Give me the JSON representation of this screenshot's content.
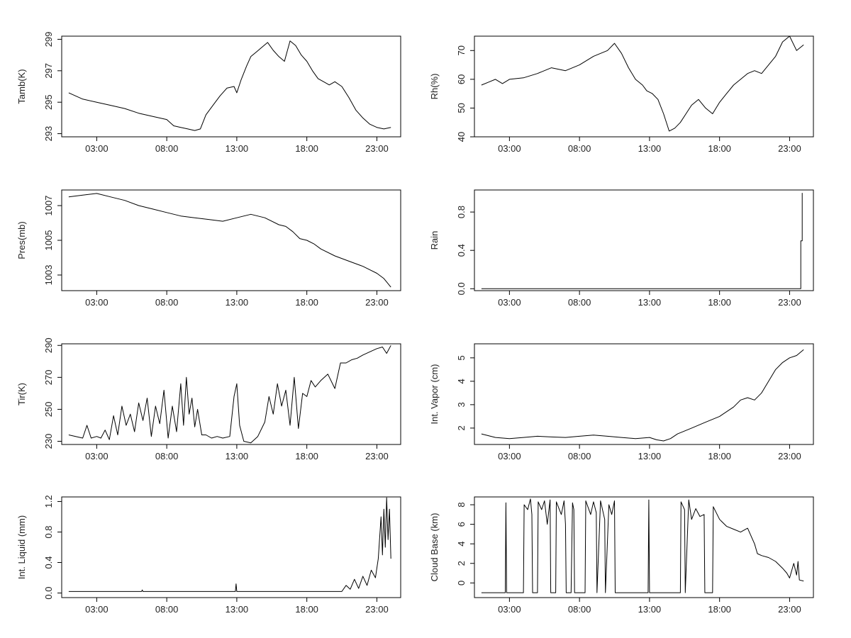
{
  "chart_data": [
    {
      "id": "tamb",
      "type": "line",
      "title": "",
      "xlabel": "",
      "ylabel": "Tamb(K)",
      "xlim": [
        0.5,
        24.7
      ],
      "ylim": [
        292.8,
        299.2
      ],
      "x_ticks": [
        3,
        8,
        13,
        18,
        23
      ],
      "x_tick_labels": [
        "03:00",
        "08:00",
        "13:00",
        "18:00",
        "23:00"
      ],
      "y_ticks": [
        293,
        295,
        297,
        299
      ],
      "y_tick_labels": [
        "293",
        "295",
        "297",
        "299"
      ],
      "grid": false,
      "legend": "none",
      "series": [
        {
          "x": [
            1.0,
            2.0,
            3.0,
            4.0,
            5.0,
            6.0,
            7.0,
            8.0,
            8.5,
            9.0,
            9.5,
            10.0,
            10.4,
            10.8,
            11.3,
            11.8,
            12.3,
            12.8,
            13.0,
            13.3,
            13.7,
            14.0,
            14.4,
            14.8,
            15.2,
            15.6,
            16.0,
            16.4,
            16.8,
            17.2,
            17.6,
            18.0,
            18.4,
            18.8,
            19.2,
            19.6,
            20.0,
            20.5,
            21.0,
            21.5,
            22.0,
            22.5,
            23.0,
            23.5,
            24.0
          ],
          "y": [
            295.6,
            295.2,
            295.0,
            294.8,
            294.6,
            294.3,
            294.1,
            293.9,
            293.5,
            293.4,
            293.3,
            293.2,
            293.3,
            294.2,
            294.8,
            295.4,
            295.9,
            296.0,
            295.6,
            296.4,
            297.3,
            297.9,
            298.2,
            298.5,
            298.8,
            298.3,
            297.9,
            297.6,
            298.9,
            298.6,
            298.0,
            297.6,
            297.0,
            296.5,
            296.3,
            296.1,
            296.3,
            296.0,
            295.3,
            294.5,
            294.0,
            293.6,
            293.4,
            293.3,
            293.4
          ]
        }
      ]
    },
    {
      "id": "rh",
      "type": "line",
      "title": "",
      "xlabel": "",
      "ylabel": "Rh(%)",
      "xlim": [
        0.5,
        24.7
      ],
      "ylim": [
        40,
        75
      ],
      "x_ticks": [
        3,
        8,
        13,
        18,
        23
      ],
      "x_tick_labels": [
        "03:00",
        "08:00",
        "13:00",
        "18:00",
        "23:00"
      ],
      "y_ticks": [
        40,
        50,
        60,
        70
      ],
      "y_tick_labels": [
        "40",
        "50",
        "60",
        "70"
      ],
      "grid": false,
      "legend": "none",
      "series": [
        {
          "x": [
            1.0,
            1.5,
            2.0,
            2.5,
            3.0,
            4.0,
            5.0,
            6.0,
            7.0,
            8.0,
            9.0,
            10.0,
            10.5,
            11.0,
            11.5,
            12.0,
            12.5,
            12.8,
            13.2,
            13.6,
            14.0,
            14.4,
            14.8,
            15.2,
            15.6,
            16.0,
            16.5,
            17.0,
            17.5,
            18.0,
            18.5,
            19.0,
            19.5,
            20.0,
            20.5,
            21.0,
            21.5,
            22.0,
            22.5,
            23.0,
            23.5,
            24.0
          ],
          "y": [
            58.0,
            59.0,
            60.0,
            58.5,
            60.0,
            60.5,
            62.0,
            64.0,
            63.0,
            65.0,
            68.0,
            70.0,
            72.5,
            69.0,
            64.0,
            60.0,
            58.0,
            56.0,
            55.0,
            53.0,
            48.0,
            42.0,
            43.0,
            45.0,
            48.0,
            51.0,
            53.0,
            50.0,
            48.0,
            52.0,
            55.0,
            58.0,
            60.0,
            62.0,
            63.0,
            62.0,
            65.0,
            68.0,
            73.0,
            75.0,
            70.0,
            72.0
          ]
        }
      ]
    },
    {
      "id": "pres",
      "type": "line",
      "title": "",
      "xlabel": "",
      "ylabel": "Pres(mb)",
      "xlim": [
        0.5,
        24.7
      ],
      "ylim": [
        1002.1,
        1007.9
      ],
      "x_ticks": [
        3,
        8,
        13,
        18,
        23
      ],
      "x_tick_labels": [
        "03:00",
        "08:00",
        "13:00",
        "18:00",
        "23:00"
      ],
      "y_ticks": [
        1003,
        1005,
        1007
      ],
      "y_tick_labels": [
        "1003",
        "1005",
        "1007"
      ],
      "grid": false,
      "legend": "none",
      "series": [
        {
          "x": [
            1.0,
            2.0,
            3.0,
            4.0,
            5.0,
            6.0,
            7.0,
            8.0,
            9.0,
            10.0,
            11.0,
            12.0,
            13.0,
            14.0,
            15.0,
            16.0,
            16.5,
            17.0,
            17.5,
            18.0,
            18.5,
            19.0,
            20.0,
            21.0,
            22.0,
            23.0,
            23.5,
            24.0
          ],
          "y": [
            1007.5,
            1007.6,
            1007.7,
            1007.5,
            1007.3,
            1007.0,
            1006.8,
            1006.6,
            1006.4,
            1006.3,
            1006.2,
            1006.1,
            1006.3,
            1006.5,
            1006.3,
            1005.9,
            1005.8,
            1005.5,
            1005.1,
            1005.0,
            1004.8,
            1004.5,
            1004.1,
            1003.8,
            1003.5,
            1003.1,
            1002.8,
            1002.3
          ]
        }
      ]
    },
    {
      "id": "rain",
      "type": "line",
      "title": "",
      "xlabel": "",
      "ylabel": "Rain",
      "xlim": [
        0.5,
        24.7
      ],
      "ylim": [
        -0.02,
        1.03
      ],
      "x_ticks": [
        3,
        8,
        13,
        18,
        23
      ],
      "x_tick_labels": [
        "03:00",
        "08:00",
        "13:00",
        "18:00",
        "23:00"
      ],
      "y_ticks": [
        0.0,
        0.4,
        0.8
      ],
      "y_tick_labels": [
        "0.0",
        "0.4",
        "0.8"
      ],
      "grid": false,
      "legend": "none",
      "series": [
        {
          "x": [
            1.0,
            23.8,
            23.8,
            23.9,
            23.9
          ],
          "y": [
            0.0,
            0.0,
            0.5,
            0.5,
            1.0
          ]
        }
      ]
    },
    {
      "id": "tir",
      "type": "line",
      "title": "",
      "xlabel": "",
      "ylabel": "Tir(K)",
      "xlim": [
        0.5,
        24.7
      ],
      "ylim": [
        228,
        291
      ],
      "x_ticks": [
        3,
        8,
        13,
        18,
        23
      ],
      "x_tick_labels": [
        "03:00",
        "08:00",
        "13:00",
        "18:00",
        "23:00"
      ],
      "y_ticks": [
        230,
        250,
        270,
        290
      ],
      "y_tick_labels": [
        "230",
        "250",
        "270",
        "290"
      ],
      "grid": false,
      "legend": "none",
      "series": [
        {
          "x": [
            1.0,
            1.5,
            2.0,
            2.3,
            2.6,
            3.0,
            3.3,
            3.6,
            3.9,
            4.2,
            4.5,
            4.8,
            5.1,
            5.4,
            5.7,
            6.0,
            6.3,
            6.6,
            6.9,
            7.2,
            7.5,
            7.8,
            8.1,
            8.4,
            8.7,
            9.0,
            9.2,
            9.4,
            9.6,
            9.8,
            10.0,
            10.2,
            10.5,
            10.8,
            11.2,
            11.6,
            12.0,
            12.5,
            12.8,
            13.0,
            13.2,
            13.5,
            14.0,
            14.5,
            15.0,
            15.3,
            15.6,
            15.9,
            16.2,
            16.5,
            16.8,
            17.1,
            17.4,
            17.7,
            18.0,
            18.3,
            18.6,
            19.0,
            19.5,
            20.0,
            20.4,
            20.8,
            21.2,
            21.6,
            22.0,
            22.5,
            23.0,
            23.4,
            23.7,
            24.0
          ],
          "y": [
            234,
            233,
            232,
            240,
            232,
            233,
            232,
            237,
            231,
            246,
            234,
            252,
            240,
            247,
            236,
            254,
            243,
            257,
            233,
            252,
            241,
            262,
            232,
            252,
            236,
            266,
            240,
            270,
            247,
            257,
            239,
            250,
            234,
            234,
            232,
            233,
            232,
            233,
            258,
            266,
            240,
            230,
            229,
            233,
            242,
            258,
            247,
            266,
            252,
            262,
            240,
            270,
            238,
            260,
            258,
            268,
            264,
            268,
            272,
            263,
            279,
            279,
            281,
            282,
            284,
            286,
            288,
            289,
            285,
            290
          ]
        }
      ]
    },
    {
      "id": "vapor",
      "type": "line",
      "title": "",
      "xlabel": "",
      "ylabel": "Int. Vapor (cm)",
      "xlim": [
        0.5,
        24.7
      ],
      "ylim": [
        1.3,
        5.6
      ],
      "x_ticks": [
        3,
        8,
        13,
        18,
        23
      ],
      "x_tick_labels": [
        "03:00",
        "08:00",
        "13:00",
        "18:00",
        "23:00"
      ],
      "y_ticks": [
        2,
        3,
        4,
        5
      ],
      "y_tick_labels": [
        "2",
        "3",
        "4",
        "5"
      ],
      "grid": false,
      "legend": "none",
      "series": [
        {
          "x": [
            1.0,
            2.0,
            3.0,
            4.0,
            5.0,
            6.0,
            7.0,
            8.0,
            9.0,
            10.0,
            11.0,
            12.0,
            13.0,
            13.5,
            14.0,
            14.5,
            15.0,
            16.0,
            17.0,
            18.0,
            19.0,
            19.5,
            20.0,
            20.5,
            21.0,
            21.5,
            22.0,
            22.5,
            23.0,
            23.5,
            24.0
          ],
          "y": [
            1.75,
            1.6,
            1.55,
            1.6,
            1.65,
            1.62,
            1.6,
            1.65,
            1.7,
            1.65,
            1.6,
            1.55,
            1.6,
            1.5,
            1.45,
            1.55,
            1.75,
            2.0,
            2.25,
            2.5,
            2.9,
            3.2,
            3.3,
            3.2,
            3.5,
            4.0,
            4.5,
            4.8,
            5.0,
            5.1,
            5.35
          ]
        }
      ]
    },
    {
      "id": "liquid",
      "type": "line",
      "title": "",
      "xlabel": "",
      "ylabel": "Int. Liquid (mm)",
      "xlim": [
        0.5,
        24.7
      ],
      "ylim": [
        -0.06,
        1.26
      ],
      "x_ticks": [
        3,
        8,
        13,
        18,
        23
      ],
      "x_tick_labels": [
        "03:00",
        "08:00",
        "13:00",
        "18:00",
        "23:00"
      ],
      "y_ticks": [
        0.0,
        0.4,
        0.8,
        1.2
      ],
      "y_tick_labels": [
        "0.0",
        "0.4",
        "0.8",
        "1.2"
      ],
      "grid": false,
      "legend": "none",
      "series": [
        {
          "x": [
            1.0,
            6.2,
            6.25,
            6.3,
            12.9,
            12.95,
            13.0,
            20.5,
            20.8,
            21.1,
            21.4,
            21.7,
            22.0,
            22.3,
            22.6,
            22.9,
            23.1,
            23.3,
            23.4,
            23.5,
            23.6,
            23.7,
            23.8,
            23.9,
            24.0
          ],
          "y": [
            0.02,
            0.02,
            0.04,
            0.02,
            0.02,
            0.12,
            0.02,
            0.02,
            0.1,
            0.05,
            0.18,
            0.06,
            0.22,
            0.1,
            0.3,
            0.2,
            0.45,
            1.0,
            0.5,
            1.1,
            0.6,
            1.25,
            0.7,
            1.1,
            0.45
          ]
        }
      ]
    },
    {
      "id": "cloudbase",
      "type": "line",
      "title": "",
      "xlabel": "",
      "ylabel": "Cloud Base (km)",
      "xlim": [
        0.5,
        24.7
      ],
      "ylim": [
        -1.5,
        8.8
      ],
      "x_ticks": [
        3,
        8,
        13,
        18,
        23
      ],
      "x_tick_labels": [
        "03:00",
        "08:00",
        "13:00",
        "18:00",
        "23:00"
      ],
      "y_ticks": [
        0,
        2,
        4,
        6,
        8
      ],
      "y_tick_labels": [
        "0",
        "2",
        "4",
        "6",
        "8"
      ],
      "grid": false,
      "legend": "none",
      "series": [
        {
          "x": [
            1.0,
            2.7,
            2.75,
            2.8,
            4.0,
            4.05,
            4.3,
            4.5,
            4.6,
            4.65,
            5.0,
            5.05,
            5.3,
            5.5,
            5.7,
            5.9,
            5.95,
            6.3,
            6.35,
            6.7,
            6.9,
            7.0,
            7.05,
            7.4,
            7.5,
            7.6,
            7.65,
            8.4,
            8.45,
            8.8,
            9.0,
            9.2,
            9.25,
            9.5,
            9.8,
            9.85,
            10.1,
            10.3,
            10.5,
            10.55,
            11.0,
            12.9,
            12.95,
            13.0,
            15.2,
            15.25,
            15.5,
            15.55,
            15.8,
            16.0,
            16.3,
            16.6,
            16.9,
            16.95,
            17.5,
            17.55,
            18.0,
            18.5,
            19.0,
            19.5,
            20.0,
            20.5,
            20.7,
            21.0,
            21.5,
            22.0,
            22.5,
            22.8,
            23.0,
            23.3,
            23.5,
            23.6,
            23.7,
            24.0
          ],
          "y": [
            -1.0,
            -1.0,
            8.2,
            -1.0,
            -1.0,
            8.0,
            7.5,
            8.6,
            7.0,
            -1.0,
            -1.0,
            8.3,
            7.5,
            8.4,
            6.0,
            8.5,
            -1.0,
            -1.0,
            8.3,
            7.0,
            8.4,
            6.0,
            -1.0,
            -1.0,
            8.2,
            7.5,
            -1.0,
            -1.0,
            8.4,
            7.0,
            8.3,
            7.2,
            -1.0,
            8.4,
            6.5,
            -1.0,
            8.0,
            7.0,
            8.4,
            -1.0,
            -1.0,
            -1.0,
            8.5,
            -1.0,
            -1.0,
            8.3,
            7.5,
            -1.0,
            8.5,
            6.5,
            7.6,
            6.8,
            7.0,
            -1.0,
            -1.0,
            7.8,
            6.5,
            5.8,
            5.5,
            5.2,
            5.6,
            4.0,
            3.0,
            2.8,
            2.6,
            2.2,
            1.5,
            1.0,
            0.5,
            2.0,
            0.8,
            2.2,
            0.3,
            0.2
          ]
        }
      ]
    }
  ]
}
